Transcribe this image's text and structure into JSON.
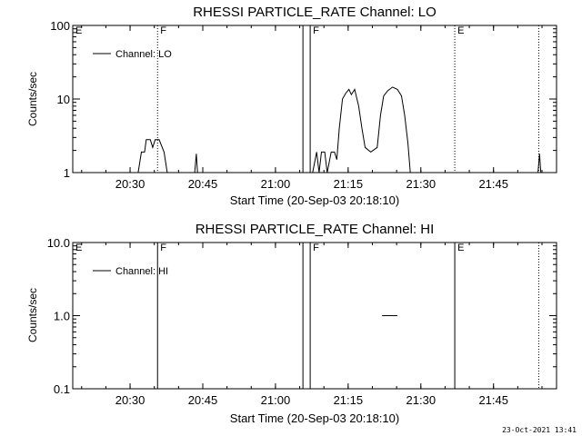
{
  "footer_timestamp": "23-Oct-2021 13:41",
  "chart_data": [
    {
      "type": "line",
      "title": "RHESSI PARTICLE_RATE Channel: LO",
      "xlabel": "Start Time (20-Sep-03 20:18:10)",
      "ylabel": "Counts/sec",
      "y_scale": "log",
      "ylim": [
        1,
        100
      ],
      "xlim": [
        "20:18:10",
        "21:58:00"
      ],
      "x_ticks": [
        "20:30",
        "20:45",
        "21:00",
        "21:15",
        "21:30",
        "21:45"
      ],
      "y_ticks": [
        "1",
        "10",
        "100"
      ],
      "legend": {
        "placement": "top-left",
        "entries": [
          "Channel: LO"
        ]
      },
      "grid": false,
      "markers": [
        {
          "label": "E",
          "time": "20:18:10",
          "style": "solid"
        },
        {
          "label": "F",
          "time": "20:35:40",
          "style": "dotted"
        },
        {
          "label": "",
          "time": "21:05:40",
          "style": "solid"
        },
        {
          "label": "F",
          "time": "21:07:10",
          "style": "solid"
        },
        {
          "label": "E",
          "time": "21:37:00",
          "style": "dotted"
        },
        {
          "label": "",
          "time": "21:54:20",
          "style": "dotted"
        }
      ],
      "series": [
        {
          "name": "Channel: LO",
          "color": "#000000",
          "segments": [
            [
              [
                "20:31:40",
                1
              ],
              [
                "20:32:20",
                1.9
              ],
              [
                "20:33:00",
                1.9
              ],
              [
                "20:33:20",
                2.8
              ],
              [
                "20:34:10",
                2.8
              ],
              [
                "20:34:40",
                2.2
              ],
              [
                "20:35:10",
                2.8
              ],
              [
                "20:36:00",
                2.8
              ],
              [
                "20:37:00",
                1.9
              ],
              [
                "20:37:40",
                1
              ]
            ],
            [
              [
                "20:43:20",
                1
              ],
              [
                "20:43:40",
                1.8
              ],
              [
                "20:43:55",
                1
              ]
            ],
            [
              [
                "21:07:40",
                1
              ],
              [
                "21:08:30",
                1.9
              ],
              [
                "21:09:00",
                1
              ],
              [
                "21:09:30",
                1.9
              ],
              [
                "21:10:10",
                1.9
              ],
              [
                "21:10:40",
                1
              ],
              [
                "21:11:30",
                1.9
              ],
              [
                "21:12:10",
                1.9
              ],
              [
                "21:12:40",
                1.5
              ],
              [
                "21:13:10",
                4
              ],
              [
                "21:13:50",
                10
              ],
              [
                "21:14:30",
                12
              ],
              [
                "21:15:10",
                13.5
              ],
              [
                "21:15:40",
                11.5
              ],
              [
                "21:16:20",
                13.5
              ],
              [
                "21:17:10",
                8
              ],
              [
                "21:17:50",
                4
              ],
              [
                "21:18:30",
                2.2
              ],
              [
                "21:19:40",
                1.9
              ],
              [
                "21:21:00",
                2.2
              ],
              [
                "21:21:40",
                6
              ],
              [
                "21:22:20",
                11
              ],
              [
                "21:23:10",
                13
              ],
              [
                "21:24:10",
                14.5
              ],
              [
                "21:25:10",
                13.5
              ],
              [
                "21:26:00",
                11
              ],
              [
                "21:26:40",
                6
              ],
              [
                "21:27:20",
                2.5
              ],
              [
                "21:27:50",
                1
              ]
            ],
            [
              [
                "21:54:10",
                1
              ],
              [
                "21:54:30",
                1.8
              ],
              [
                "21:54:45",
                1
              ]
            ]
          ]
        }
      ]
    },
    {
      "type": "line",
      "title": "RHESSI PARTICLE_RATE Channel: HI",
      "xlabel": "Start Time (20-Sep-03 20:18:10)",
      "ylabel": "Counts/sec",
      "y_scale": "log",
      "ylim": [
        0.1,
        10
      ],
      "xlim": [
        "20:18:10",
        "21:58:00"
      ],
      "x_ticks": [
        "20:30",
        "20:45",
        "21:00",
        "21:15",
        "21:30",
        "21:45"
      ],
      "y_ticks": [
        "0.1",
        "1.0",
        "10.0"
      ],
      "legend": {
        "placement": "top-left",
        "entries": [
          "Channel: HI"
        ]
      },
      "grid": false,
      "markers": [
        {
          "label": "E",
          "time": "20:18:10",
          "style": "solid"
        },
        {
          "label": "F",
          "time": "20:35:40",
          "style": "solid"
        },
        {
          "label": "",
          "time": "21:05:40",
          "style": "solid"
        },
        {
          "label": "F",
          "time": "21:07:10",
          "style": "solid"
        },
        {
          "label": "E",
          "time": "21:37:00",
          "style": "solid"
        },
        {
          "label": "",
          "time": "21:54:20",
          "style": "dotted"
        }
      ],
      "series": [
        {
          "name": "Channel: HI",
          "color": "#000000",
          "segments": [
            [
              [
                "21:22:00",
                1.0
              ],
              [
                "21:25:10",
                1.0
              ]
            ]
          ]
        }
      ]
    }
  ]
}
